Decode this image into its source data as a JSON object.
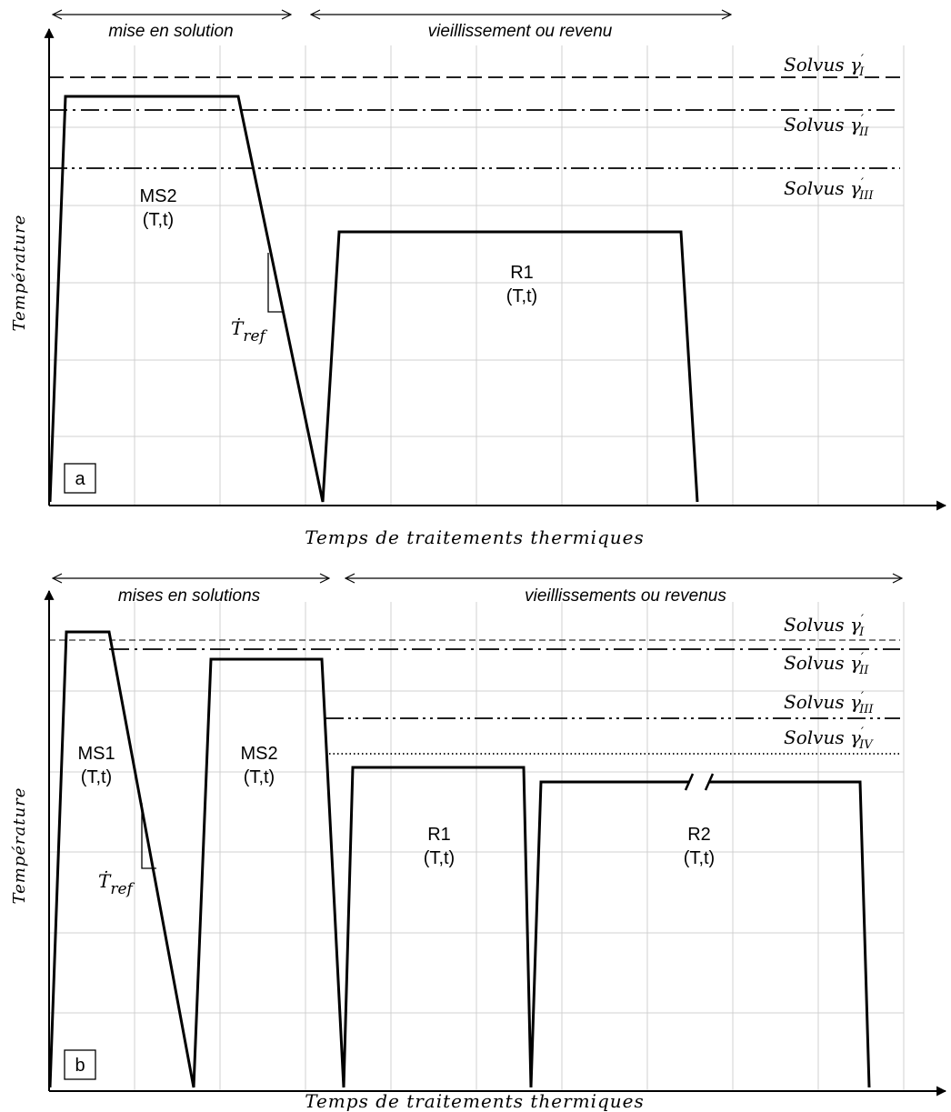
{
  "panels": [
    {
      "panel_label": "a",
      "phase_labels": [
        "mise en solution",
        "vieillissement ou revenu"
      ],
      "x_axis_label": "Temps de traitements thermiques",
      "y_axis_label": "Température",
      "solvus_labels": [
        {
          "base": "Solvus",
          "symbol": "γ",
          "prime": "′",
          "sub": "I",
          "line_style": "dashed"
        },
        {
          "base": "Solvus",
          "symbol": "γ",
          "prime": "′",
          "sub": "II",
          "line_style": "dash-dot"
        },
        {
          "base": "Solvus",
          "symbol": "γ",
          "prime": "′",
          "sub": "III",
          "line_style": "dash-dot-dot"
        }
      ],
      "steps": [
        {
          "name": "MS2",
          "params": "(T,t)"
        },
        {
          "name": "R1",
          "params": "(T,t)"
        }
      ],
      "rate": {
        "base": "Ṫ",
        "sub": "ref"
      }
    },
    {
      "panel_label": "b",
      "phase_labels": [
        "mises en solutions",
        "vieillissements ou revenus"
      ],
      "x_axis_label": "Temps de traitements thermiques",
      "y_axis_label": "Température",
      "solvus_labels": [
        {
          "base": "Solvus",
          "symbol": "γ",
          "prime": "′",
          "sub": "I",
          "line_style": "thin-dashed"
        },
        {
          "base": "Solvus",
          "symbol": "γ",
          "prime": "′",
          "sub": "II",
          "line_style": "dash-dot"
        },
        {
          "base": "Solvus",
          "symbol": "γ",
          "prime": "′",
          "sub": "III",
          "line_style": "dash-dot-dot"
        },
        {
          "base": "Solvus",
          "symbol": "γ",
          "prime": "′",
          "sub": "IV",
          "line_style": "dotted"
        }
      ],
      "steps": [
        {
          "name": "MS1",
          "params": "(T,t)"
        },
        {
          "name": "MS2",
          "params": "(T,t)"
        },
        {
          "name": "R1",
          "params": "(T,t)"
        },
        {
          "name": "R2",
          "params": "(T,t)"
        }
      ],
      "rate": {
        "base": "Ṫ",
        "sub": "ref"
      }
    }
  ]
}
